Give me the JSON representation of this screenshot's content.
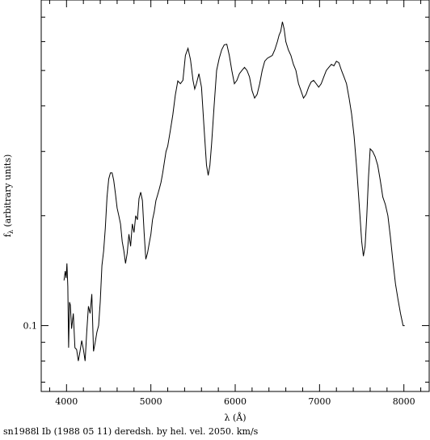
{
  "caption": "sn1988l Ib (1988 05 11) deredsh. by hel. vel.  2050. km/s",
  "chart_data": {
    "type": "line",
    "title": "",
    "xlabel": "λ (Å)",
    "ylabel_main": "f",
    "ylabel_sub": "λ",
    "ylabel_rest": " (arbitrary units)",
    "xlim": [
      3700,
      8300
    ],
    "ylim": [
      0.066,
      0.78
    ],
    "yscale": "log",
    "grid": false,
    "x_ticks": [
      4000,
      5000,
      6000,
      7000,
      8000
    ],
    "x_tick_labels": [
      "4000",
      "5000",
      "6000",
      "7000",
      "8000"
    ],
    "y_tick_labels": [
      {
        "value": 0.1,
        "label": "0.1"
      }
    ],
    "series": [
      {
        "name": "",
        "x": [
          3970,
          3985,
          3995,
          4005,
          4015,
          4025,
          4035,
          4045,
          4060,
          4080,
          4100,
          4120,
          4140,
          4160,
          4180,
          4200,
          4220,
          4240,
          4260,
          4280,
          4300,
          4320,
          4340,
          4360,
          4380,
          4400,
          4420,
          4440,
          4460,
          4480,
          4500,
          4520,
          4540,
          4560,
          4580,
          4600,
          4620,
          4640,
          4660,
          4680,
          4700,
          4720,
          4740,
          4760,
          4780,
          4800,
          4820,
          4840,
          4860,
          4880,
          4900,
          4920,
          4940,
          4960,
          4980,
          5000,
          5020,
          5040,
          5060,
          5080,
          5100,
          5120,
          5140,
          5160,
          5180,
          5200,
          5230,
          5260,
          5290,
          5320,
          5350,
          5380,
          5410,
          5440,
          5470,
          5500,
          5520,
          5540,
          5570,
          5600,
          5630,
          5660,
          5680,
          5700,
          5720,
          5750,
          5780,
          5810,
          5840,
          5870,
          5900,
          5930,
          5960,
          5990,
          6020,
          6050,
          6080,
          6110,
          6140,
          6170,
          6200,
          6230,
          6260,
          6290,
          6320,
          6350,
          6380,
          6410,
          6440,
          6470,
          6500,
          6520,
          6540,
          6560,
          6580,
          6600,
          6630,
          6660,
          6690,
          6720,
          6750,
          6780,
          6810,
          6840,
          6870,
          6900,
          6930,
          6960,
          6990,
          7020,
          7050,
          7080,
          7110,
          7140,
          7170,
          7200,
          7230,
          7260,
          7290,
          7320,
          7350,
          7380,
          7410,
          7440,
          7470,
          7500,
          7520,
          7540,
          7560,
          7580,
          7600,
          7630,
          7660,
          7690,
          7720,
          7750,
          7780,
          7810,
          7840,
          7870,
          7900,
          7930,
          7960,
          7990,
          8010
        ],
        "y": [
          0.133,
          0.141,
          0.135,
          0.148,
          0.128,
          0.087,
          0.116,
          0.114,
          0.098,
          0.108,
          0.087,
          0.086,
          0.08,
          0.085,
          0.091,
          0.086,
          0.08,
          0.096,
          0.113,
          0.108,
          0.122,
          0.085,
          0.09,
          0.096,
          0.1,
          0.116,
          0.146,
          0.16,
          0.185,
          0.225,
          0.252,
          0.262,
          0.262,
          0.25,
          0.23,
          0.21,
          0.2,
          0.19,
          0.17,
          0.16,
          0.148,
          0.158,
          0.178,
          0.165,
          0.19,
          0.18,
          0.2,
          0.195,
          0.223,
          0.232,
          0.22,
          0.18,
          0.152,
          0.158,
          0.168,
          0.178,
          0.195,
          0.205,
          0.22,
          0.228,
          0.237,
          0.247,
          0.262,
          0.28,
          0.3,
          0.31,
          0.342,
          0.378,
          0.428,
          0.468,
          0.46,
          0.47,
          0.55,
          0.575,
          0.535,
          0.47,
          0.445,
          0.46,
          0.49,
          0.45,
          0.35,
          0.275,
          0.258,
          0.275,
          0.315,
          0.4,
          0.5,
          0.54,
          0.57,
          0.588,
          0.59,
          0.55,
          0.5,
          0.46,
          0.47,
          0.49,
          0.5,
          0.51,
          0.5,
          0.48,
          0.44,
          0.42,
          0.43,
          0.46,
          0.5,
          0.53,
          0.54,
          0.545,
          0.55,
          0.57,
          0.6,
          0.625,
          0.64,
          0.68,
          0.65,
          0.6,
          0.57,
          0.55,
          0.52,
          0.5,
          0.46,
          0.44,
          0.42,
          0.43,
          0.45,
          0.465,
          0.47,
          0.46,
          0.45,
          0.46,
          0.48,
          0.5,
          0.51,
          0.52,
          0.515,
          0.53,
          0.525,
          0.5,
          0.48,
          0.46,
          0.42,
          0.38,
          0.33,
          0.27,
          0.215,
          0.17,
          0.155,
          0.165,
          0.2,
          0.255,
          0.305,
          0.3,
          0.29,
          0.275,
          0.25,
          0.225,
          0.215,
          0.2,
          0.175,
          0.15,
          0.13,
          0.118,
          0.108,
          0.1,
          0.1
        ]
      }
    ]
  }
}
